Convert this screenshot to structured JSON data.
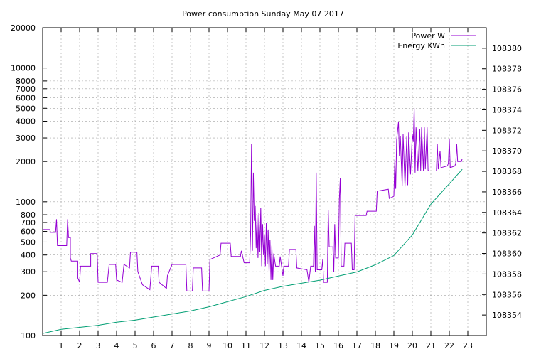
{
  "chart_data": {
    "type": "line",
    "title": "Power consumption Sunday May 07 2017",
    "xlabel": "",
    "ylabel": "",
    "y2label": "",
    "grid": true,
    "legend_placement": "top-right",
    "x_ticks": [
      "1",
      "2",
      "3",
      "4",
      "5",
      "6",
      "7",
      "8",
      "9",
      "10",
      "11",
      "12",
      "13",
      "14",
      "15",
      "16",
      "17",
      "18",
      "19",
      "20",
      "21",
      "22",
      "23"
    ],
    "xlim": [
      0,
      24
    ],
    "y_scale": "log",
    "ylim": [
      100,
      20000
    ],
    "y_ticks": [
      100,
      200,
      300,
      400,
      500,
      600,
      700,
      800,
      1000,
      2000,
      3000,
      4000,
      5000,
      6000,
      7000,
      8000,
      10000,
      20000
    ],
    "y2lim": [
      108352,
      108382
    ],
    "y2_ticks": [
      108354,
      108356,
      108358,
      108360,
      108362,
      108364,
      108366,
      108368,
      108370,
      108372,
      108374,
      108376,
      108378,
      108380
    ],
    "series": [
      {
        "name": "Power W",
        "axis": "left",
        "color": "#9400d3",
        "points": [
          [
            0.0,
            620
          ],
          [
            0.4,
            620
          ],
          [
            0.4,
            590
          ],
          [
            0.7,
            590
          ],
          [
            0.75,
            740
          ],
          [
            0.8,
            470
          ],
          [
            1.3,
            470
          ],
          [
            1.35,
            740
          ],
          [
            1.4,
            540
          ],
          [
            1.5,
            540
          ],
          [
            1.5,
            380
          ],
          [
            1.55,
            360
          ],
          [
            1.9,
            360
          ],
          [
            1.9,
            270
          ],
          [
            2.0,
            250
          ],
          [
            2.05,
            330
          ],
          [
            2.6,
            330
          ],
          [
            2.6,
            410
          ],
          [
            2.95,
            410
          ],
          [
            3.0,
            250
          ],
          [
            3.5,
            250
          ],
          [
            3.6,
            340
          ],
          [
            3.95,
            340
          ],
          [
            4.0,
            260
          ],
          [
            4.3,
            250
          ],
          [
            4.4,
            340
          ],
          [
            4.7,
            320
          ],
          [
            4.75,
            420
          ],
          [
            5.1,
            420
          ],
          [
            5.15,
            300
          ],
          [
            5.4,
            240
          ],
          [
            5.8,
            220
          ],
          [
            5.9,
            330
          ],
          [
            6.25,
            330
          ],
          [
            6.3,
            250
          ],
          [
            6.7,
            225
          ],
          [
            6.75,
            280
          ],
          [
            7.0,
            340
          ],
          [
            7.75,
            340
          ],
          [
            7.8,
            215
          ],
          [
            8.1,
            215
          ],
          [
            8.15,
            320
          ],
          [
            8.6,
            320
          ],
          [
            8.65,
            215
          ],
          [
            9.0,
            215
          ],
          [
            9.05,
            370
          ],
          [
            9.6,
            400
          ],
          [
            9.65,
            490
          ],
          [
            10.15,
            490
          ],
          [
            10.2,
            390
          ],
          [
            10.7,
            390
          ],
          [
            10.75,
            430
          ],
          [
            10.9,
            350
          ],
          [
            11.2,
            350
          ],
          [
            11.25,
            570
          ],
          [
            11.3,
            2700
          ],
          [
            11.35,
            430
          ],
          [
            11.4,
            1650
          ],
          [
            11.45,
            720
          ],
          [
            11.5,
            930
          ],
          [
            11.55,
            450
          ],
          [
            11.6,
            800
          ],
          [
            11.65,
            380
          ],
          [
            11.7,
            820
          ],
          [
            11.75,
            420
          ],
          [
            11.8,
            900
          ],
          [
            11.85,
            330
          ],
          [
            11.9,
            680
          ],
          [
            11.95,
            400
          ],
          [
            12.0,
            560
          ],
          [
            12.05,
            330
          ],
          [
            12.1,
            700
          ],
          [
            12.15,
            340
          ],
          [
            12.2,
            620
          ],
          [
            12.25,
            300
          ],
          [
            12.3,
            520
          ],
          [
            12.35,
            260
          ],
          [
            12.4,
            470
          ],
          [
            12.45,
            260
          ],
          [
            12.5,
            410
          ],
          [
            12.6,
            330
          ],
          [
            12.8,
            330
          ],
          [
            12.85,
            390
          ],
          [
            13.0,
            280
          ],
          [
            13.05,
            330
          ],
          [
            13.3,
            330
          ],
          [
            13.35,
            440
          ],
          [
            13.7,
            440
          ],
          [
            13.75,
            320
          ],
          [
            14.3,
            310
          ],
          [
            14.4,
            250
          ],
          [
            14.5,
            330
          ],
          [
            14.65,
            330
          ],
          [
            14.7,
            660
          ],
          [
            14.75,
            300
          ],
          [
            14.8,
            1650
          ],
          [
            14.85,
            310
          ],
          [
            15.1,
            310
          ],
          [
            15.15,
            370
          ],
          [
            15.2,
            250
          ],
          [
            15.4,
            250
          ],
          [
            15.45,
            870
          ],
          [
            15.5,
            460
          ],
          [
            15.7,
            460
          ],
          [
            15.75,
            300
          ],
          [
            15.8,
            680
          ],
          [
            15.85,
            380
          ],
          [
            16.0,
            380
          ],
          [
            16.05,
            1050
          ],
          [
            16.1,
            1500
          ],
          [
            16.15,
            330
          ],
          [
            16.3,
            330
          ],
          [
            16.35,
            490
          ],
          [
            16.7,
            490
          ],
          [
            16.75,
            310
          ],
          [
            16.85,
            310
          ],
          [
            16.9,
            790
          ],
          [
            17.5,
            790
          ],
          [
            17.55,
            850
          ],
          [
            18.05,
            850
          ],
          [
            18.1,
            1200
          ],
          [
            18.7,
            1240
          ],
          [
            18.75,
            1060
          ],
          [
            18.9,
            1080
          ],
          [
            19.0,
            1100
          ],
          [
            19.05,
            2050
          ],
          [
            19.1,
            1250
          ],
          [
            19.15,
            2900
          ],
          [
            19.25,
            3950
          ],
          [
            19.3,
            2200
          ],
          [
            19.35,
            3100
          ],
          [
            19.45,
            1320
          ],
          [
            19.5,
            3200
          ],
          [
            19.6,
            1300
          ],
          [
            19.7,
            3100
          ],
          [
            19.75,
            1330
          ],
          [
            19.8,
            3300
          ],
          [
            19.9,
            1600
          ],
          [
            20.0,
            3200
          ],
          [
            20.05,
            2800
          ],
          [
            20.1,
            5000
          ],
          [
            20.15,
            1650
          ],
          [
            20.2,
            3600
          ],
          [
            20.3,
            1700
          ],
          [
            20.4,
            3500
          ],
          [
            20.45,
            1700
          ],
          [
            20.5,
            3600
          ],
          [
            20.6,
            1700
          ],
          [
            20.65,
            3600
          ],
          [
            20.7,
            1750
          ],
          [
            20.8,
            3600
          ],
          [
            20.85,
            1720
          ],
          [
            20.9,
            1700
          ],
          [
            21.3,
            1700
          ],
          [
            21.35,
            2700
          ],
          [
            21.4,
            1750
          ],
          [
            21.5,
            2400
          ],
          [
            21.55,
            1800
          ],
          [
            21.9,
            1850
          ],
          [
            21.95,
            1950
          ],
          [
            22.0,
            2950
          ],
          [
            22.05,
            1800
          ],
          [
            22.3,
            1850
          ],
          [
            22.35,
            1950
          ],
          [
            22.4,
            2700
          ],
          [
            22.45,
            2000
          ],
          [
            22.55,
            2000
          ],
          [
            22.65,
            2000
          ],
          [
            22.7,
            2100
          ]
        ]
      },
      {
        "name": "Energy KWh",
        "axis": "right",
        "color": "#009e73",
        "points": [
          [
            0.0,
            108352.2
          ],
          [
            1.0,
            108352.6
          ],
          [
            2.0,
            108352.8
          ],
          [
            3.0,
            108353.0
          ],
          [
            4.0,
            108353.3
          ],
          [
            5.0,
            108353.5
          ],
          [
            6.0,
            108353.8
          ],
          [
            7.0,
            108354.1
          ],
          [
            8.0,
            108354.4
          ],
          [
            9.0,
            108354.8
          ],
          [
            10.0,
            108355.3
          ],
          [
            11.0,
            108355.8
          ],
          [
            12.0,
            108356.4
          ],
          [
            13.0,
            108356.8
          ],
          [
            14.0,
            108357.1
          ],
          [
            15.0,
            108357.4
          ],
          [
            16.0,
            108357.8
          ],
          [
            17.0,
            108358.2
          ],
          [
            18.0,
            108358.9
          ],
          [
            19.0,
            108359.8
          ],
          [
            20.0,
            108361.8
          ],
          [
            21.0,
            108364.8
          ],
          [
            22.0,
            108366.8
          ],
          [
            22.7,
            108368.2
          ]
        ]
      }
    ]
  }
}
